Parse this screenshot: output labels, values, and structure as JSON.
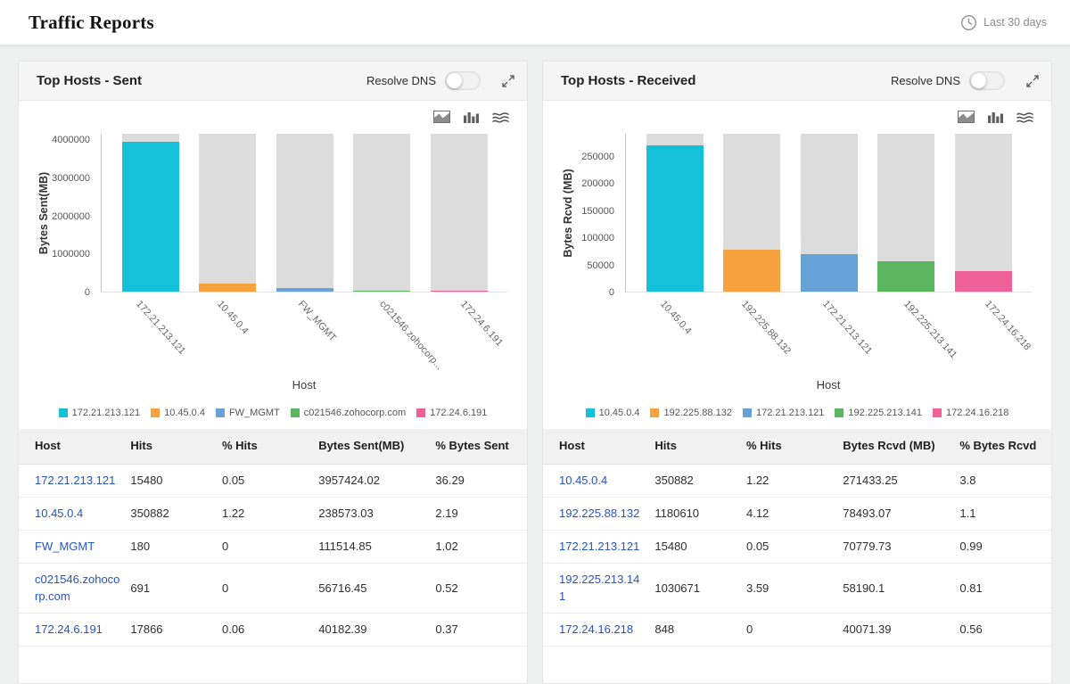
{
  "page": {
    "title": "Traffic Reports",
    "time_range": "Last 30 days"
  },
  "panels": [
    {
      "title": "Top Hosts - Sent",
      "resolve_dns_label": "Resolve DNS",
      "chart_data": {
        "type": "bar",
        "categories": [
          "172.21.213.121",
          "10.45.0.4",
          "FW_MGMT",
          "c021546.zohocorp...",
          "172.24.6.191"
        ],
        "values": [
          3957424.02,
          238573.03,
          111514.85,
          56716.45,
          40182.39
        ],
        "colors": [
          "#15c1d9",
          "#f7a23f",
          "#66a1d8",
          "#5cb65f",
          "#ef6297"
        ],
        "bg_bar_color": "#dcdcdc",
        "xlabel": "Host",
        "ylabel": "Bytes Sent(MB)",
        "yticks": [
          0,
          1000000,
          2000000,
          3000000,
          4000000
        ],
        "plot_max": 4170000,
        "legend_position": "bottom"
      },
      "legend": [
        {
          "label": "172.21.213.121",
          "color": "#15c1d9"
        },
        {
          "label": "10.45.0.4",
          "color": "#f7a23f"
        },
        {
          "label": "FW_MGMT",
          "color": "#66a1d8"
        },
        {
          "label": "c021546.zohocorp.com",
          "color": "#5cb65f"
        },
        {
          "label": "172.24.6.191",
          "color": "#ef6297"
        }
      ],
      "table": {
        "columns": [
          "Host",
          "Hits",
          "% Hits",
          "Bytes Sent(MB)",
          "% Bytes Sent"
        ],
        "rows": [
          [
            "172.21.213.121",
            "15480",
            "0.05",
            "3957424.02",
            "36.29"
          ],
          [
            "10.45.0.4",
            "350882",
            "1.22",
            "238573.03",
            "2.19"
          ],
          [
            "FW_MGMT",
            "180",
            "0",
            "111514.85",
            "1.02"
          ],
          [
            "c021546.zohocorp.com",
            "691",
            "0",
            "56716.45",
            "0.52"
          ],
          [
            "172.24.6.191",
            "17866",
            "0.06",
            "40182.39",
            "0.37"
          ]
        ]
      }
    },
    {
      "title": "Top Hosts - Received",
      "resolve_dns_label": "Resolve DNS",
      "chart_data": {
        "type": "bar",
        "categories": [
          "10.45.0.4",
          "192.225.88.132",
          "172.21.213.121",
          "192.225.213.141",
          "172.24.16.218"
        ],
        "values": [
          271433.25,
          78493.07,
          70779.73,
          58190.1,
          40071.39
        ],
        "colors": [
          "#15c1d9",
          "#f7a23f",
          "#66a1d8",
          "#5cb65f",
          "#ef6297"
        ],
        "bg_bar_color": "#dcdcdc",
        "xlabel": "Host",
        "ylabel": "Bytes Rcvd (MB)",
        "yticks": [
          0,
          50000,
          100000,
          150000,
          200000,
          250000
        ],
        "plot_max": 292000,
        "legend_position": "bottom"
      },
      "legend": [
        {
          "label": "10.45.0.4",
          "color": "#15c1d9"
        },
        {
          "label": "192.225.88.132",
          "color": "#f7a23f"
        },
        {
          "label": "172.21.213.121",
          "color": "#66a1d8"
        },
        {
          "label": "192.225.213.141",
          "color": "#5cb65f"
        },
        {
          "label": "172.24.16.218",
          "color": "#ef6297"
        }
      ],
      "table": {
        "columns": [
          "Host",
          "Hits",
          "% Hits",
          "Bytes Rcvd (MB)",
          "% Bytes Rcvd"
        ],
        "rows": [
          [
            "10.45.0.4",
            "350882",
            "1.22",
            "271433.25",
            "3.8"
          ],
          [
            "192.225.88.132",
            "1180610",
            "4.12",
            "78493.07",
            "1.1"
          ],
          [
            "172.21.213.121",
            "15480",
            "0.05",
            "70779.73",
            "0.99"
          ],
          [
            "192.225.213.141",
            "1030671",
            "3.59",
            "58190.1",
            "0.81"
          ],
          [
            "172.24.16.218",
            "848",
            "0",
            "40071.39",
            "0.56"
          ]
        ]
      }
    }
  ]
}
